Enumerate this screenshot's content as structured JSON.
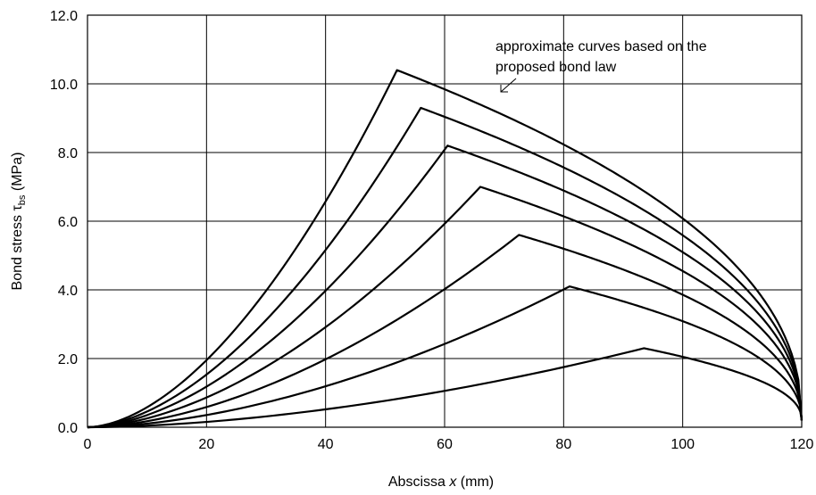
{
  "chart_data": {
    "type": "line",
    "title": "",
    "xlabel_prefix": "Abscissa ",
    "xlabel_var": "x",
    "xlabel_suffix": " (mm)",
    "ylabel_prefix": "Bond stress ",
    "ylabel_symbol": "τ",
    "ylabel_sub": "bs",
    "ylabel_suffix": " (MPa)",
    "xlim": [
      0,
      120
    ],
    "ylim": [
      0,
      12
    ],
    "grid": true,
    "x_ticks": [
      0,
      20,
      40,
      60,
      80,
      100,
      120
    ],
    "x_tick_labels": [
      "0",
      "20",
      "40",
      "60",
      "80",
      "100",
      "120"
    ],
    "y_ticks": [
      0,
      2,
      4,
      6,
      8,
      10,
      12
    ],
    "y_tick_labels": [
      "0.0",
      "2.0",
      "4.0",
      "6.0",
      "8.0",
      "10.0",
      "12.0"
    ],
    "x_end": 120,
    "series": [
      {
        "peak_x": 52.0,
        "peak_y": 10.4
      },
      {
        "peak_x": 56.0,
        "peak_y": 9.3
      },
      {
        "peak_x": 60.5,
        "peak_y": 8.2
      },
      {
        "peak_x": 66.0,
        "peak_y": 7.0
      },
      {
        "peak_x": 72.5,
        "peak_y": 5.6
      },
      {
        "peak_x": 81.0,
        "peak_y": 4.1
      },
      {
        "peak_x": 93.5,
        "peak_y": 2.3
      }
    ],
    "annotation": {
      "lines": [
        "approximate curves based on the",
        "proposed bond law"
      ]
    }
  }
}
